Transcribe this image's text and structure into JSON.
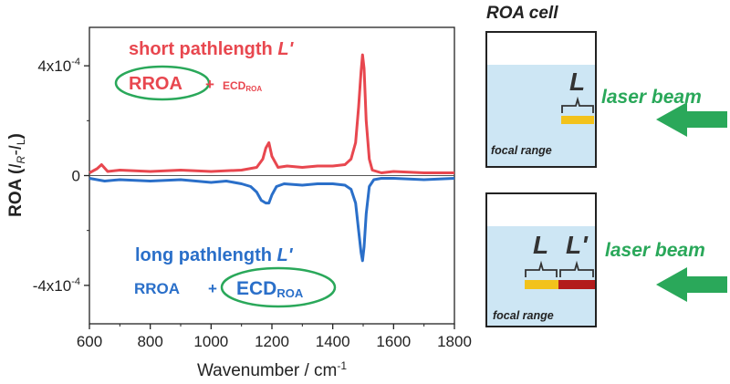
{
  "chart_data": {
    "type": "line",
    "xlabel": "Wavenumber / cm",
    "xlabel_sup": "-1",
    "ylabel_main": "ROA (",
    "ylabel_IR": "I",
    "ylabel_R": "R",
    "ylabel_dash": "-I",
    "ylabel_L": "L",
    "ylabel_close": ")",
    "xlim": [
      600,
      1800
    ],
    "ylim": [
      -5.4,
      5.4
    ],
    "y_unit_note": "x10^-4",
    "x_ticks": [
      "600",
      "800",
      "1000",
      "1200",
      "1400",
      "1600",
      "1800"
    ],
    "y_ticks": [
      {
        "value": 4,
        "base": "4x10",
        "exp": "-4"
      },
      {
        "value": 0,
        "base": "0",
        "exp": ""
      },
      {
        "value": -4,
        "base": "-4x10",
        "exp": "-4"
      }
    ],
    "series": [
      {
        "color": "#e8474f",
        "x": [
          600,
          625,
          640,
          660,
          700,
          800,
          900,
          1000,
          1100,
          1150,
          1170,
          1180,
          1190,
          1200,
          1220,
          1250,
          1300,
          1350,
          1400,
          1440,
          1460,
          1475,
          1485,
          1493,
          1498,
          1503,
          1510,
          1520,
          1530,
          1560,
          1600,
          1700,
          1800
        ],
        "y": [
          0.1,
          0.25,
          0.4,
          0.15,
          0.2,
          0.15,
          0.2,
          0.15,
          0.2,
          0.3,
          0.6,
          1.0,
          1.2,
          0.7,
          0.3,
          0.35,
          0.3,
          0.35,
          0.35,
          0.4,
          0.6,
          1.2,
          2.5,
          3.8,
          4.4,
          3.9,
          2.0,
          0.6,
          0.2,
          0.1,
          0.15,
          0.1,
          0.1
        ]
      },
      {
        "color": "#2a6fc9",
        "x": [
          600,
          650,
          700,
          800,
          900,
          1000,
          1050,
          1100,
          1130,
          1150,
          1165,
          1180,
          1190,
          1200,
          1215,
          1240,
          1300,
          1350,
          1400,
          1440,
          1460,
          1475,
          1485,
          1493,
          1498,
          1503,
          1510,
          1520,
          1535,
          1560,
          1600,
          1700,
          1800
        ],
        "y": [
          -0.1,
          -0.2,
          -0.15,
          -0.2,
          -0.15,
          -0.25,
          -0.2,
          -0.3,
          -0.4,
          -0.6,
          -0.9,
          -1.0,
          -1.0,
          -0.7,
          -0.4,
          -0.3,
          -0.35,
          -0.3,
          -0.3,
          -0.35,
          -0.5,
          -1.0,
          -2.0,
          -2.8,
          -3.1,
          -2.6,
          -1.4,
          -0.4,
          -0.15,
          -0.1,
          -0.1,
          -0.15,
          -0.1
        ]
      }
    ],
    "grid": false
  },
  "annotations": {
    "top_line1": "short pathlength ",
    "top_line1_L": "L'",
    "top_rroa": "RROA",
    "top_plus": "+",
    "top_ecd": "ECD",
    "top_ecd_sub": "ROA",
    "bottom_line1": "long pathlength ",
    "bottom_line1_L": "L'",
    "bottom_rroa": "RROA",
    "bottom_plus": "+",
    "bottom_ecd": "ECD",
    "bottom_ecd_sub": "ROA"
  },
  "cell_diagram": {
    "title": "ROA cell",
    "laser_label": "laser beam",
    "focal_label": "focal range",
    "L_label": "L",
    "Lprime_label": "L'"
  },
  "colors": {
    "red": "#e8474f",
    "blue": "#2a6fc9",
    "green": "#2aa85a",
    "liquid": "#cde6f4",
    "yellow": "#f2c21b",
    "darkred": "#b31b1b"
  }
}
